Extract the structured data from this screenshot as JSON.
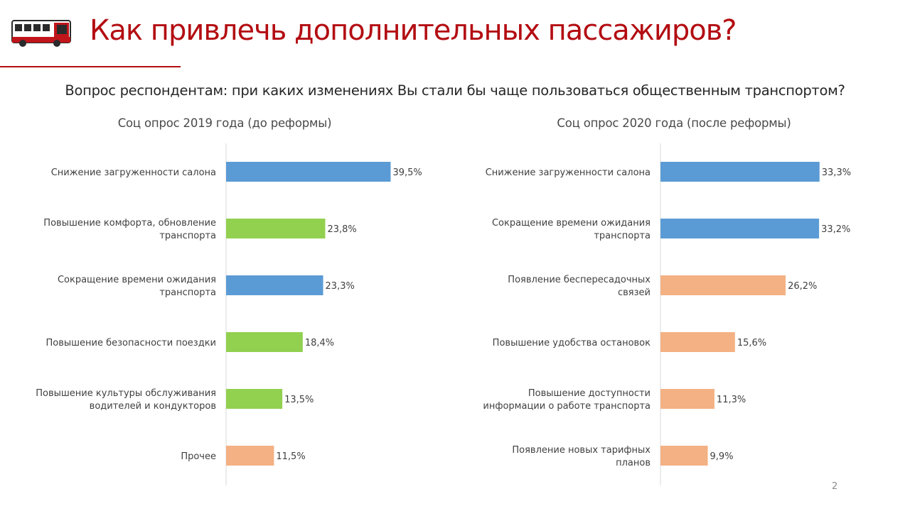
{
  "slide": {
    "title": "Как привлечь дополнительных пассажиров?",
    "question": "Вопрос респондентам: при каких изменениях Вы стали бы чаще пользоваться общественным транспортом?",
    "page_number": "2"
  },
  "colors": {
    "title": "#b30d12",
    "blue": "#5b9bd5",
    "green": "#92d050",
    "orange": "#f4b183"
  },
  "chart_data": [
    {
      "type": "bar",
      "orientation": "horizontal",
      "title": "Соц опрос 2019 года (до реформы)",
      "xlim": [
        0,
        40
      ],
      "categories": [
        [
          "Снижение загруженности салона"
        ],
        [
          "Повышение комфорта, обновление",
          "транспорта"
        ],
        [
          "Сокращение времени ожидания",
          "транспорта"
        ],
        [
          "Повышение безопасности поездки"
        ],
        [
          "Повышение культуры обслуживания",
          "водителей и кондукторов"
        ],
        [
          "Прочее"
        ]
      ],
      "values": [
        39.5,
        23.8,
        23.3,
        18.4,
        13.5,
        11.5
      ],
      "data_labels": [
        "39,5%",
        "23,8%",
        "23,3%",
        "18,4%",
        "13,5%",
        "11,5%"
      ],
      "bar_colors": [
        "#5b9bd5",
        "#92d050",
        "#5b9bd5",
        "#92d050",
        "#92d050",
        "#f4b183"
      ]
    },
    {
      "type": "bar",
      "orientation": "horizontal",
      "title": "Соц опрос 2020 года (после реформы)",
      "xlim": [
        0,
        40
      ],
      "categories": [
        [
          "Снижение загруженности салона"
        ],
        [
          "Сокращение времени ожидания",
          "транспорта"
        ],
        [
          "Появление беспересадочных",
          "связей"
        ],
        [
          "Повышение удобства остановок"
        ],
        [
          "Повышение доступности",
          "информации о работе транспорта"
        ],
        [
          "Появление новых тарифных",
          "планов"
        ]
      ],
      "values": [
        33.3,
        33.2,
        26.2,
        15.6,
        11.3,
        9.9
      ],
      "data_labels": [
        "33,3%",
        "33,2%",
        "26,2%",
        "15,6%",
        "11,3%",
        "9,9%"
      ],
      "bar_colors": [
        "#5b9bd5",
        "#5b9bd5",
        "#f4b183",
        "#f4b183",
        "#f4b183",
        "#f4b183"
      ]
    }
  ]
}
